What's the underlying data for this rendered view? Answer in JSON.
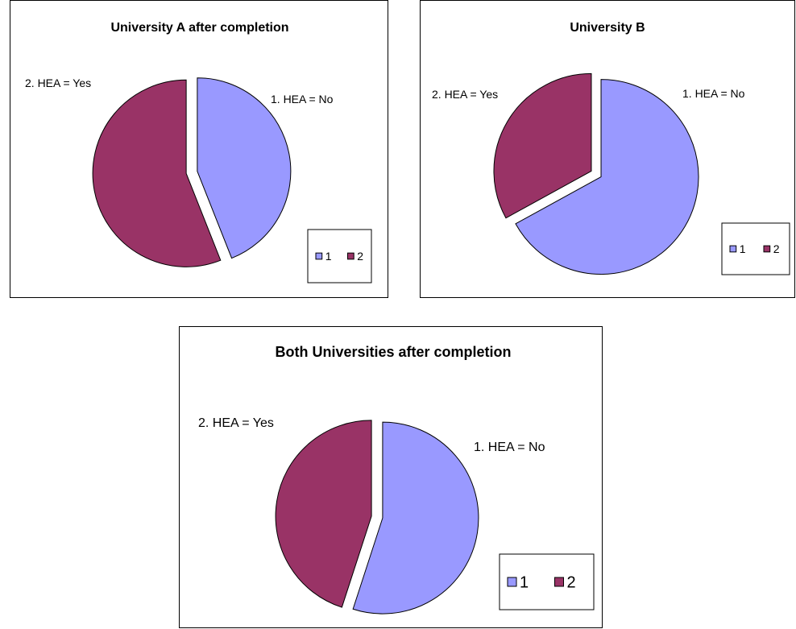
{
  "colors": {
    "series_1": "#9999ff",
    "series_2": "#993366"
  },
  "chart_data": [
    {
      "type": "pie",
      "title": "University A after completion",
      "categories": [
        "1",
        "2"
      ],
      "values": [
        44,
        56
      ],
      "slice_labels": [
        "1. HEA = No",
        "2. HEA = Yes"
      ],
      "legend": [
        "1",
        "2"
      ],
      "legend_position": "bottom-right"
    },
    {
      "type": "pie",
      "title": "University B",
      "categories": [
        "1",
        "2"
      ],
      "values": [
        67,
        33
      ],
      "slice_labels": [
        "1. HEA = No",
        "2. HEA = Yes"
      ],
      "legend": [
        "1",
        "2"
      ],
      "legend_position": "bottom-right"
    },
    {
      "type": "pie",
      "title": "Both Universities after completion",
      "categories": [
        "1",
        "2"
      ],
      "values": [
        55,
        45
      ],
      "slice_labels": [
        "1. HEA = No",
        "2. HEA = Yes"
      ],
      "legend": [
        "1",
        "2"
      ],
      "legend_position": "bottom-right"
    }
  ]
}
